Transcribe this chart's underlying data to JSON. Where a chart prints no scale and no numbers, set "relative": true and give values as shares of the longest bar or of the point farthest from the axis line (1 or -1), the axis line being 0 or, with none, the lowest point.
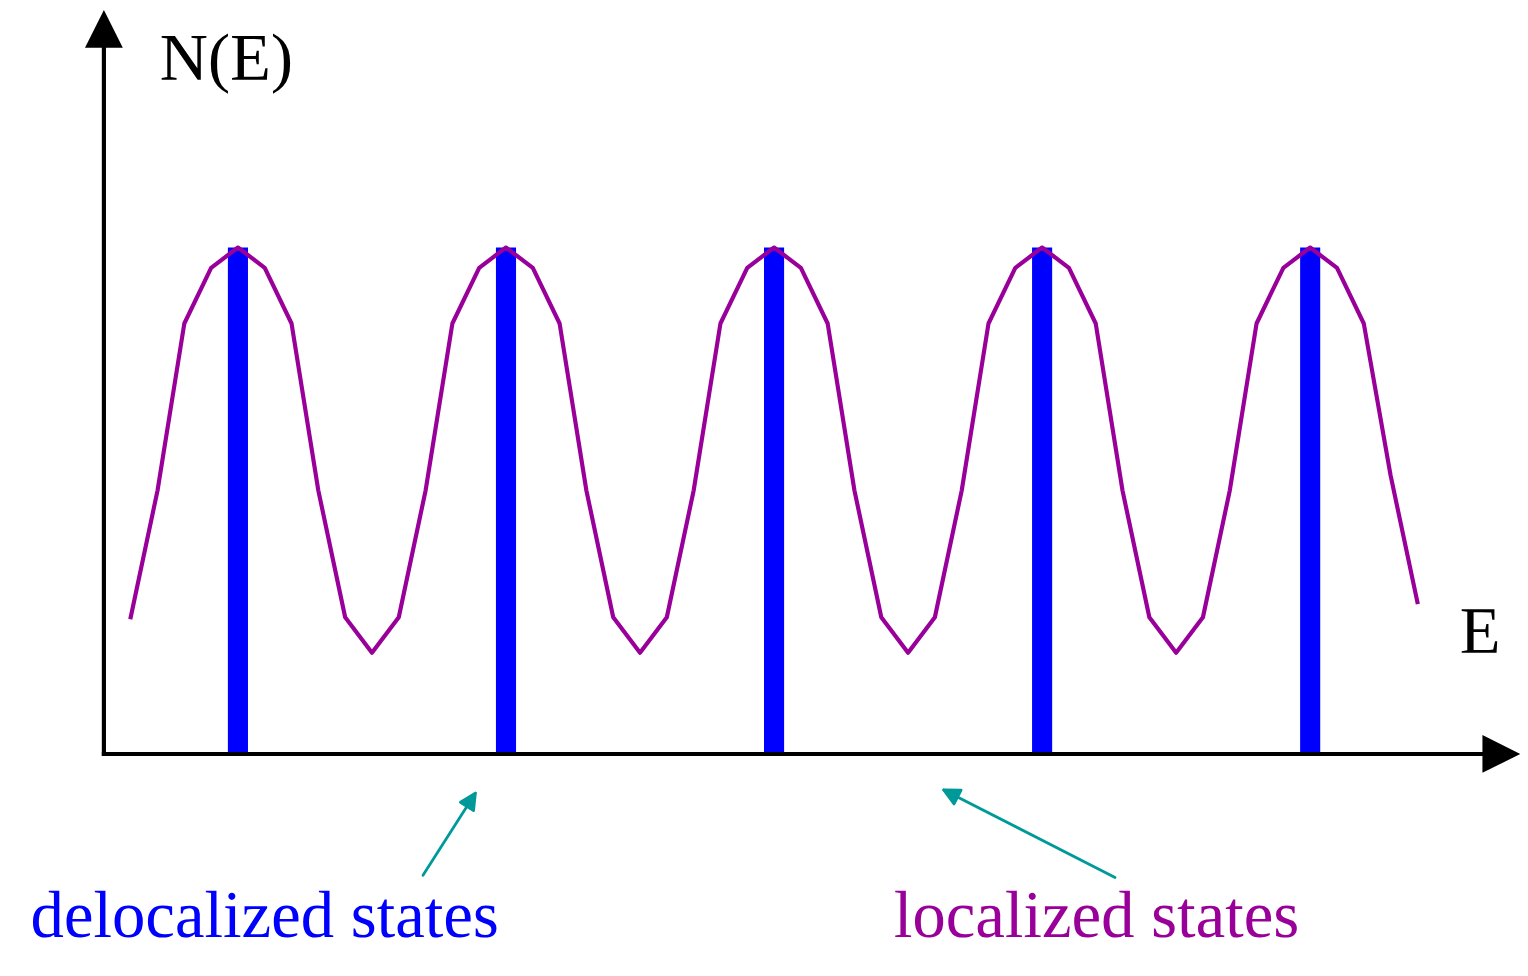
{
  "chart_data": [
    {
      "type": "bar",
      "relative": true,
      "xlabel": "E",
      "ylabel": "N(E)",
      "categories": [
        null,
        null,
        null,
        null,
        null
      ],
      "color": "#0000ff",
      "values": [
        1,
        1,
        1,
        1,
        1
      ],
      "annotations": [
        "delocalized states"
      ]
    },
    {
      "type": "line",
      "relative": true,
      "color": "#990099",
      "line_style": "solid",
      "categories": [
        null,
        null,
        null,
        null,
        null,
        null,
        null,
        null,
        null,
        null,
        null,
        null,
        null,
        null,
        null,
        null,
        null,
        null,
        null,
        null,
        null,
        null,
        null,
        null,
        null,
        null,
        null,
        null,
        null,
        null,
        null,
        null,
        null,
        null,
        null,
        null,
        null,
        null,
        null,
        null,
        null,
        null,
        null,
        null,
        null,
        null,
        null,
        null,
        null
      ],
      "values": [
        0.27,
        0.52,
        0.85,
        0.96,
        1,
        0.96,
        0.85,
        0.52,
        0.27,
        0.2,
        0.27,
        0.52,
        0.85,
        0.96,
        1,
        0.96,
        0.85,
        0.52,
        0.27,
        0.2,
        0.27,
        0.52,
        0.85,
        0.96,
        1,
        0.96,
        0.85,
        0.52,
        0.27,
        0.2,
        0.27,
        0.52,
        0.85,
        0.96,
        1,
        0.96,
        0.85,
        0.52,
        0.27,
        0.2,
        0.27,
        0.52,
        0.85,
        0.96,
        1,
        0.96,
        0.85,
        0.55,
        0.3
      ],
      "annotations": [
        "localized states"
      ]
    }
  ]
}
